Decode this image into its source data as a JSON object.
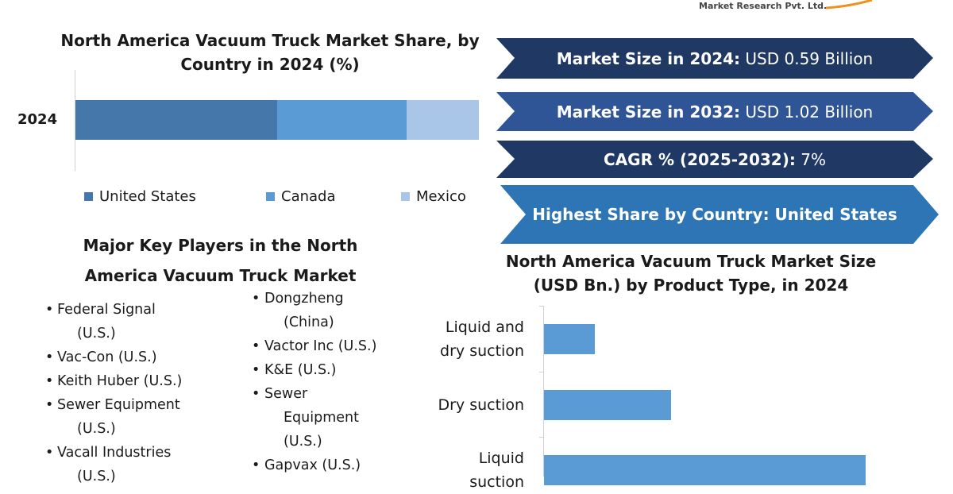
{
  "logo": {
    "text": "Market Research Pvt. Ltd.",
    "swoosh_color": "#f0901e"
  },
  "colors": {
    "banner_dark": "#203864",
    "banner_mid": "#2f5597",
    "banner_light": "#2e75b6",
    "us": "#4677ab",
    "canada": "#5b9bd5",
    "mexico": "#a9c6e8",
    "bar": "#5b9bd5"
  },
  "banners": [
    {
      "bold": "Market Size in 2024:",
      "text": " USD 0.59 Billion"
    },
    {
      "bold": "Market Size in 2032:",
      "text": " USD 1.02 Billion"
    },
    {
      "bold": "CAGR % (2025-2032):",
      "text": " 7%"
    },
    {
      "bold": "Highest Share by Country: United States",
      "text": ""
    }
  ],
  "players": {
    "title_line1": "Major Key Players in the North",
    "title_line2": "America Vacuum Truck Market",
    "bullet": "•",
    "left": [
      {
        "lines": [
          "Federal Signal",
          "(U.S.)"
        ]
      },
      {
        "lines": [
          "Vac-Con (U.S.)"
        ]
      },
      {
        "lines": [
          "Keith Huber (U.S.)"
        ]
      },
      {
        "lines": [
          "Sewer Equipment",
          "(U.S.)"
        ]
      },
      {
        "lines": [
          "Vacall Industries",
          "(U.S.)"
        ]
      }
    ],
    "right": [
      {
        "lines": [
          "Dongzheng",
          "(China)"
        ]
      },
      {
        "lines": [
          "Vactor Inc (U.S.)"
        ]
      },
      {
        "lines": [
          "K&E (U.S.)"
        ]
      },
      {
        "lines": [
          "Sewer",
          "Equipment",
          "(U.S.)"
        ]
      },
      {
        "lines": [
          "Gapvax (U.S.)"
        ]
      }
    ]
  },
  "chart_data": [
    {
      "type": "bar",
      "orientation": "horizontal-stacked",
      "title_line1": "North America Vacuum Truck Market Share, by",
      "title_line2": "Country in 2024 (%)",
      "categories": [
        "2024"
      ],
      "series": [
        {
          "name": "United States",
          "values": [
            50
          ]
        },
        {
          "name": "Canada",
          "values": [
            32
          ]
        },
        {
          "name": "Mexico",
          "values": [
            18
          ]
        }
      ],
      "xlim": [
        0,
        100
      ],
      "grid": false,
      "legend": "bottom"
    },
    {
      "type": "bar",
      "orientation": "horizontal",
      "title_line1": "North America Vacuum Truck Market Size",
      "title_line2": "(USD Bn.) by Product Type, in 2024",
      "categories": [
        [
          "Liquid and",
          "dry suction"
        ],
        [
          "Dry suction"
        ],
        [
          "Liquid",
          "suction"
        ]
      ],
      "values": [
        0.06,
        0.15,
        0.38
      ],
      "grid": false
    }
  ]
}
